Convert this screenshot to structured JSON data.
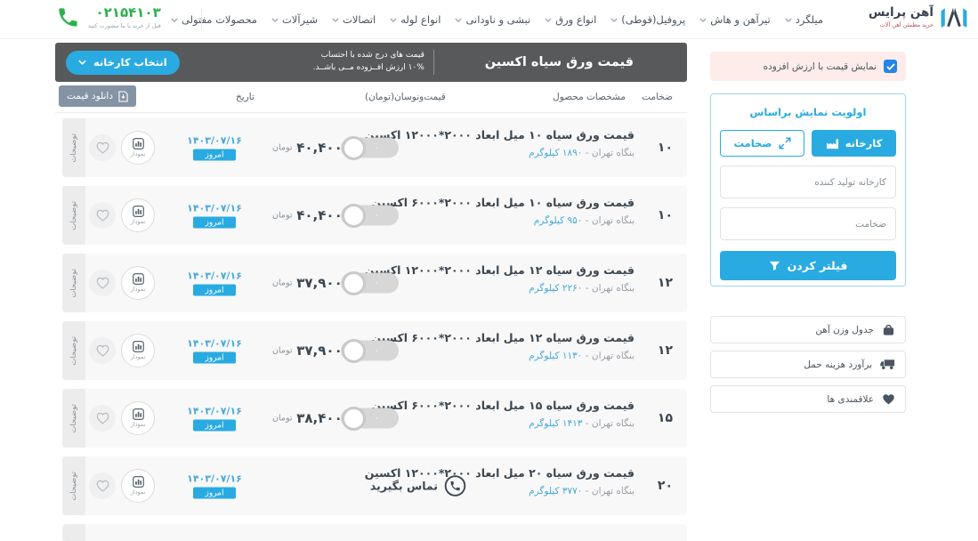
{
  "colors": {
    "accent_blue": "#29abe2",
    "link_blue": "#45a8dc",
    "brand_green": "#2bb24c",
    "dark_bar": "#58595b",
    "download_gray": "#8494a4",
    "vat_box_pink": "#fdecea",
    "row_bg": "#f8f8f8"
  },
  "header": {
    "logo_title": "آهن پرایس",
    "logo_subtitle": "خرید مطمئن آهن آلات",
    "nav": [
      {
        "label": "میلگرد"
      },
      {
        "label": "تیرآهن و هاش"
      },
      {
        "label": "پروفیل(قوطی)"
      },
      {
        "label": "انواع ورق"
      },
      {
        "label": "نبشی و ناودانی"
      },
      {
        "label": "انواع لوله"
      },
      {
        "label": "اتصالات"
      },
      {
        "label": "شیرآلات"
      },
      {
        "label": "محصولات مفتولی"
      }
    ],
    "phone_number": "۰۲۱۵۴۱۰۳",
    "phone_note": "قبل از خرید با ما مشورت کنید"
  },
  "listing": {
    "title": "قیمت ورق سیاه اکسین",
    "vat_note_line1": "قیمت های درج شده با احتساب",
    "vat_note_line2": "۱۰% ارزش افــزوده مــی باشــد.",
    "select_factory": "انتخاب کارخانه",
    "download": "دانلود قیمت",
    "columns": {
      "thickness": "ضخامت",
      "product": "مشخصات محصول",
      "price": "قیمت‌ونوسان(تومان)",
      "date": "تاریخ"
    },
    "side_tab": "توضیحات",
    "chart_label": "نمودار",
    "call_label": "تماس بگیرید",
    "unit": "تومان",
    "rows": [
      {
        "thickness": "۱۰",
        "title_pre": "قیمت ورق سیاه ۱۰ میل ابعاد",
        "dims": "۱۲۰۰۰*۲۰۰۰",
        "title_post": "اکسین",
        "location": "بنگاه تهران -",
        "weight": "۱۸۹۰ کیلوگرم",
        "change": "۰",
        "price": "۴۰,۴۰۰",
        "date": "۱۴۰۳/۰۷/۱۶",
        "badge": "امروز",
        "call": false
      },
      {
        "thickness": "۱۰",
        "title_pre": "قیمت ورق سیاه ۱۰ میل ابعاد",
        "dims": "۶۰۰۰*۲۰۰۰",
        "title_post": "اکسین",
        "location": "بنگاه تهران -",
        "weight": "۹۵۰ کیلوگرم",
        "change": "۰",
        "price": "۴۰,۴۰۰",
        "date": "۱۴۰۳/۰۷/۱۶",
        "badge": "امروز",
        "call": false
      },
      {
        "thickness": "۱۲",
        "title_pre": "قیمت ورق سیاه ۱۲ میل ابعاد",
        "dims": "۱۲۰۰۰*۲۰۰۰",
        "title_post": "اکسین",
        "location": "بنگاه تهران -",
        "weight": "۲۲۶۰ کیلوگرم",
        "change": "۰",
        "price": "۳۷,۹۰۰",
        "date": "۱۴۰۳/۰۷/۱۶",
        "badge": "امروز",
        "call": false
      },
      {
        "thickness": "۱۲",
        "title_pre": "قیمت ورق سیاه ۱۲ میل ابعاد",
        "dims": "۶۰۰۰*۲۰۰۰",
        "title_post": "اکسین",
        "location": "بنگاه تهران -",
        "weight": "۱۱۳۰ کیلوگرم",
        "change": "۰",
        "price": "۳۷,۹۰۰",
        "date": "۱۴۰۳/۰۷/۱۶",
        "badge": "امروز",
        "call": false
      },
      {
        "thickness": "۱۵",
        "title_pre": "قیمت ورق سیاه ۱۵ میل ابعاد",
        "dims": "۶۰۰۰*۲۰۰۰",
        "title_post": "اکسین",
        "location": "بنگاه تهران -",
        "weight": "۱۴۱۳ کیلوگرم",
        "change": "۰",
        "price": "۳۸,۴۰۰",
        "date": "۱۴۰۳/۰۷/۱۶",
        "badge": "امروز",
        "call": false
      },
      {
        "thickness": "۲۰",
        "title_pre": "قیمت ورق سیاه ۲۰ میل ابعاد",
        "dims": "۱۲۰۰۰*۲۰۰۰",
        "title_post": "اکسین",
        "location": "بنگاه تهران -",
        "weight": "۳۷۷۰ کیلوگرم",
        "change": "",
        "price": "",
        "date": "۱۴۰۳/۰۷/۱۶",
        "badge": "امروز",
        "call": true
      }
    ]
  },
  "sidebar": {
    "vat_toggle": "نمایش قیمت با ارزش افزوده",
    "priority_title": "اولویت نمایش براساس",
    "factory_btn": "کارخانه",
    "thickness_btn": "ضخامت",
    "factory_input_placeholder": "کارخانه تولید کننده",
    "thickness_input_placeholder": "ضخامت",
    "filter_btn": "فیلتر کردن",
    "links": [
      {
        "label": "جدول وزن آهن",
        "icon": "weight-icon"
      },
      {
        "label": "برآورد هزینه حمل",
        "icon": "truck-icon"
      },
      {
        "label": "علاقمندی ها",
        "icon": "heart-icon"
      }
    ]
  }
}
